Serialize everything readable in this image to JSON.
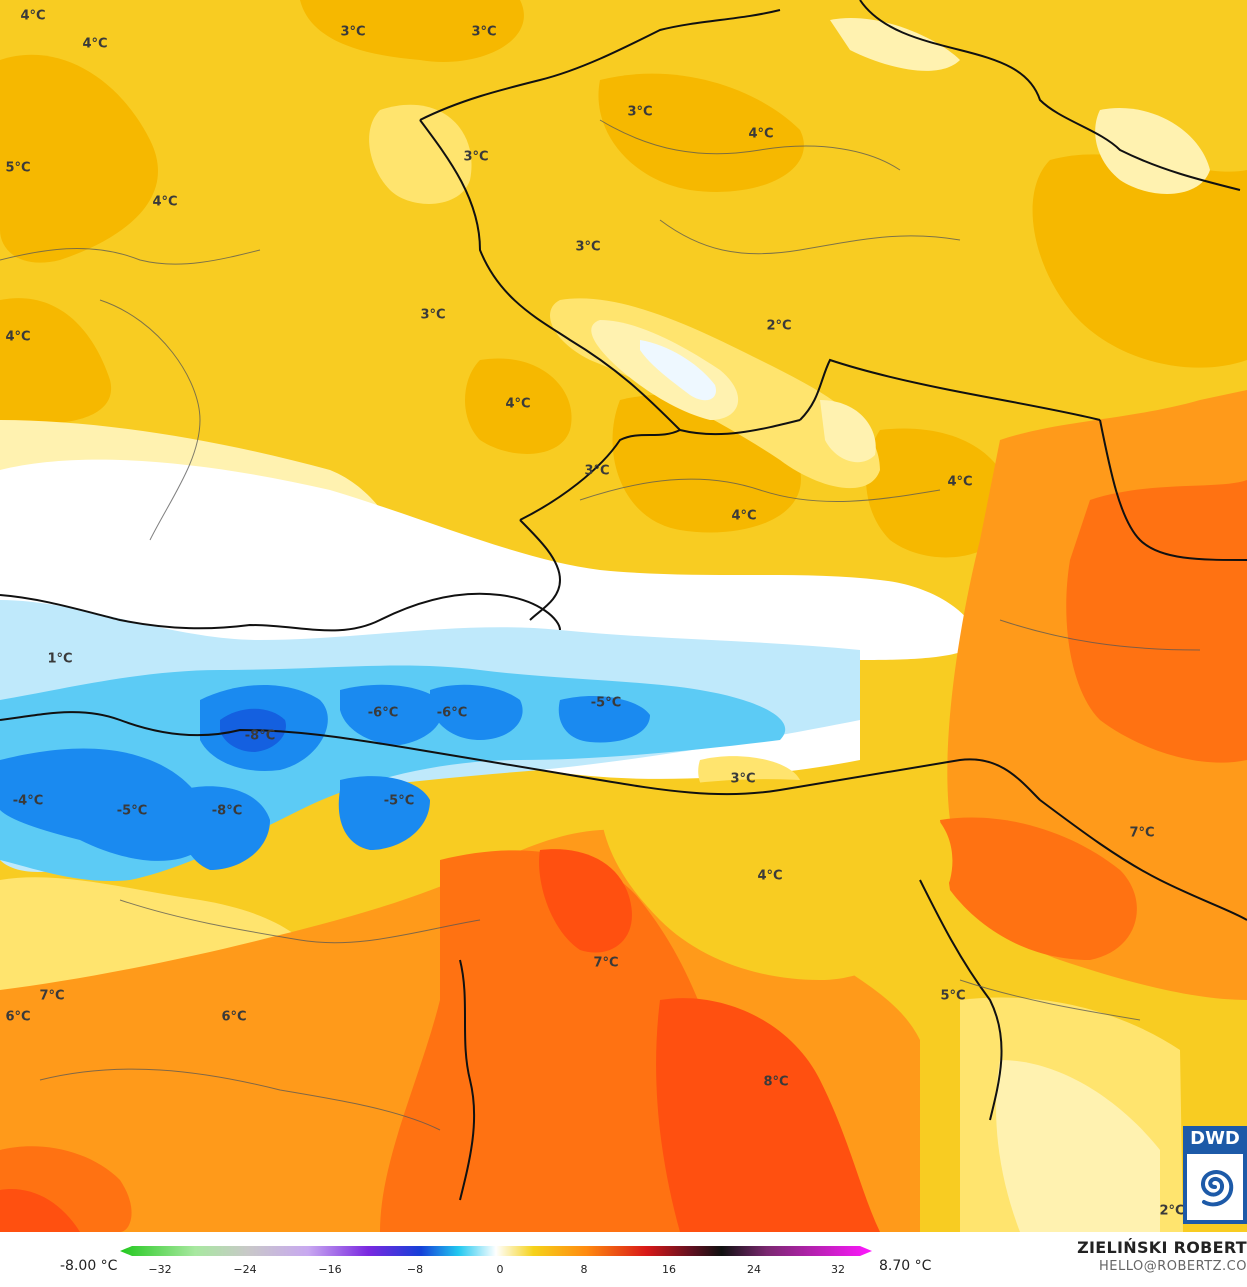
{
  "map": {
    "temperature_labels": [
      {
        "text": "4°C"
      },
      {
        "text": "4°C"
      },
      {
        "text": "3°C"
      },
      {
        "text": "3°C"
      },
      {
        "text": "5°C"
      },
      {
        "text": "4°C"
      },
      {
        "text": "3°C"
      },
      {
        "text": "3°C"
      },
      {
        "text": "4°C"
      },
      {
        "text": "3°C"
      },
      {
        "text": "4°C"
      },
      {
        "text": "3°C"
      },
      {
        "text": "2°C"
      },
      {
        "text": "4°C"
      },
      {
        "text": "3°C"
      },
      {
        "text": "4°C"
      },
      {
        "text": "4°C"
      },
      {
        "text": "1°C"
      },
      {
        "text": "-6°C"
      },
      {
        "text": "-6°C"
      },
      {
        "text": "-5°C"
      },
      {
        "text": "-8°C"
      },
      {
        "text": "3°C"
      },
      {
        "text": "-4°C"
      },
      {
        "text": "-5°C"
      },
      {
        "text": "-8°C"
      },
      {
        "text": "-5°C"
      },
      {
        "text": "7°C"
      },
      {
        "text": "4°C"
      },
      {
        "text": "7°C"
      },
      {
        "text": "7°C"
      },
      {
        "text": "6°C"
      },
      {
        "text": "6°C"
      },
      {
        "text": "5°C"
      },
      {
        "text": "8°C"
      },
      {
        "text": "2°C"
      }
    ]
  },
  "legend": {
    "min_label": "-8.00 °C",
    "max_label": "8.70 °C",
    "ticks": [
      "−32",
      "−24",
      "−16",
      "−8",
      "0",
      "8",
      "16",
      "24",
      "32"
    ],
    "colors": {
      "green": "#22c81e",
      "grey": "#c8c8c8",
      "purple": "#7a28e0",
      "blue": "#1540d8",
      "cyan": "#22c8f0",
      "white": "#ffffff",
      "yellow": "#f5d21a",
      "orange": "#ff8a10",
      "red": "#d81818",
      "black": "#101010",
      "magenta": "#ff18ff"
    }
  },
  "credit": {
    "name": "ZIELIŃSKI ROBERT",
    "email": "HELLO@ROBERTZ.CO"
  },
  "logo": {
    "text": "DWD",
    "color": "#1d5aa8"
  },
  "map_colors": {
    "light_yellow": "#fff2b0",
    "pale_yellow": "#ffe46e",
    "yellow": "#f8cc22",
    "deep_yellow": "#f6b800",
    "orange": "#ff9a1a",
    "dark_orange": "#ff7212",
    "red_orange": "#ff5010",
    "white": "#ffffff",
    "light_blue": "#bfe9fb",
    "sky_blue": "#5ccbf5",
    "blue": "#1a8af0",
    "deep_blue": "#1460e0"
  }
}
